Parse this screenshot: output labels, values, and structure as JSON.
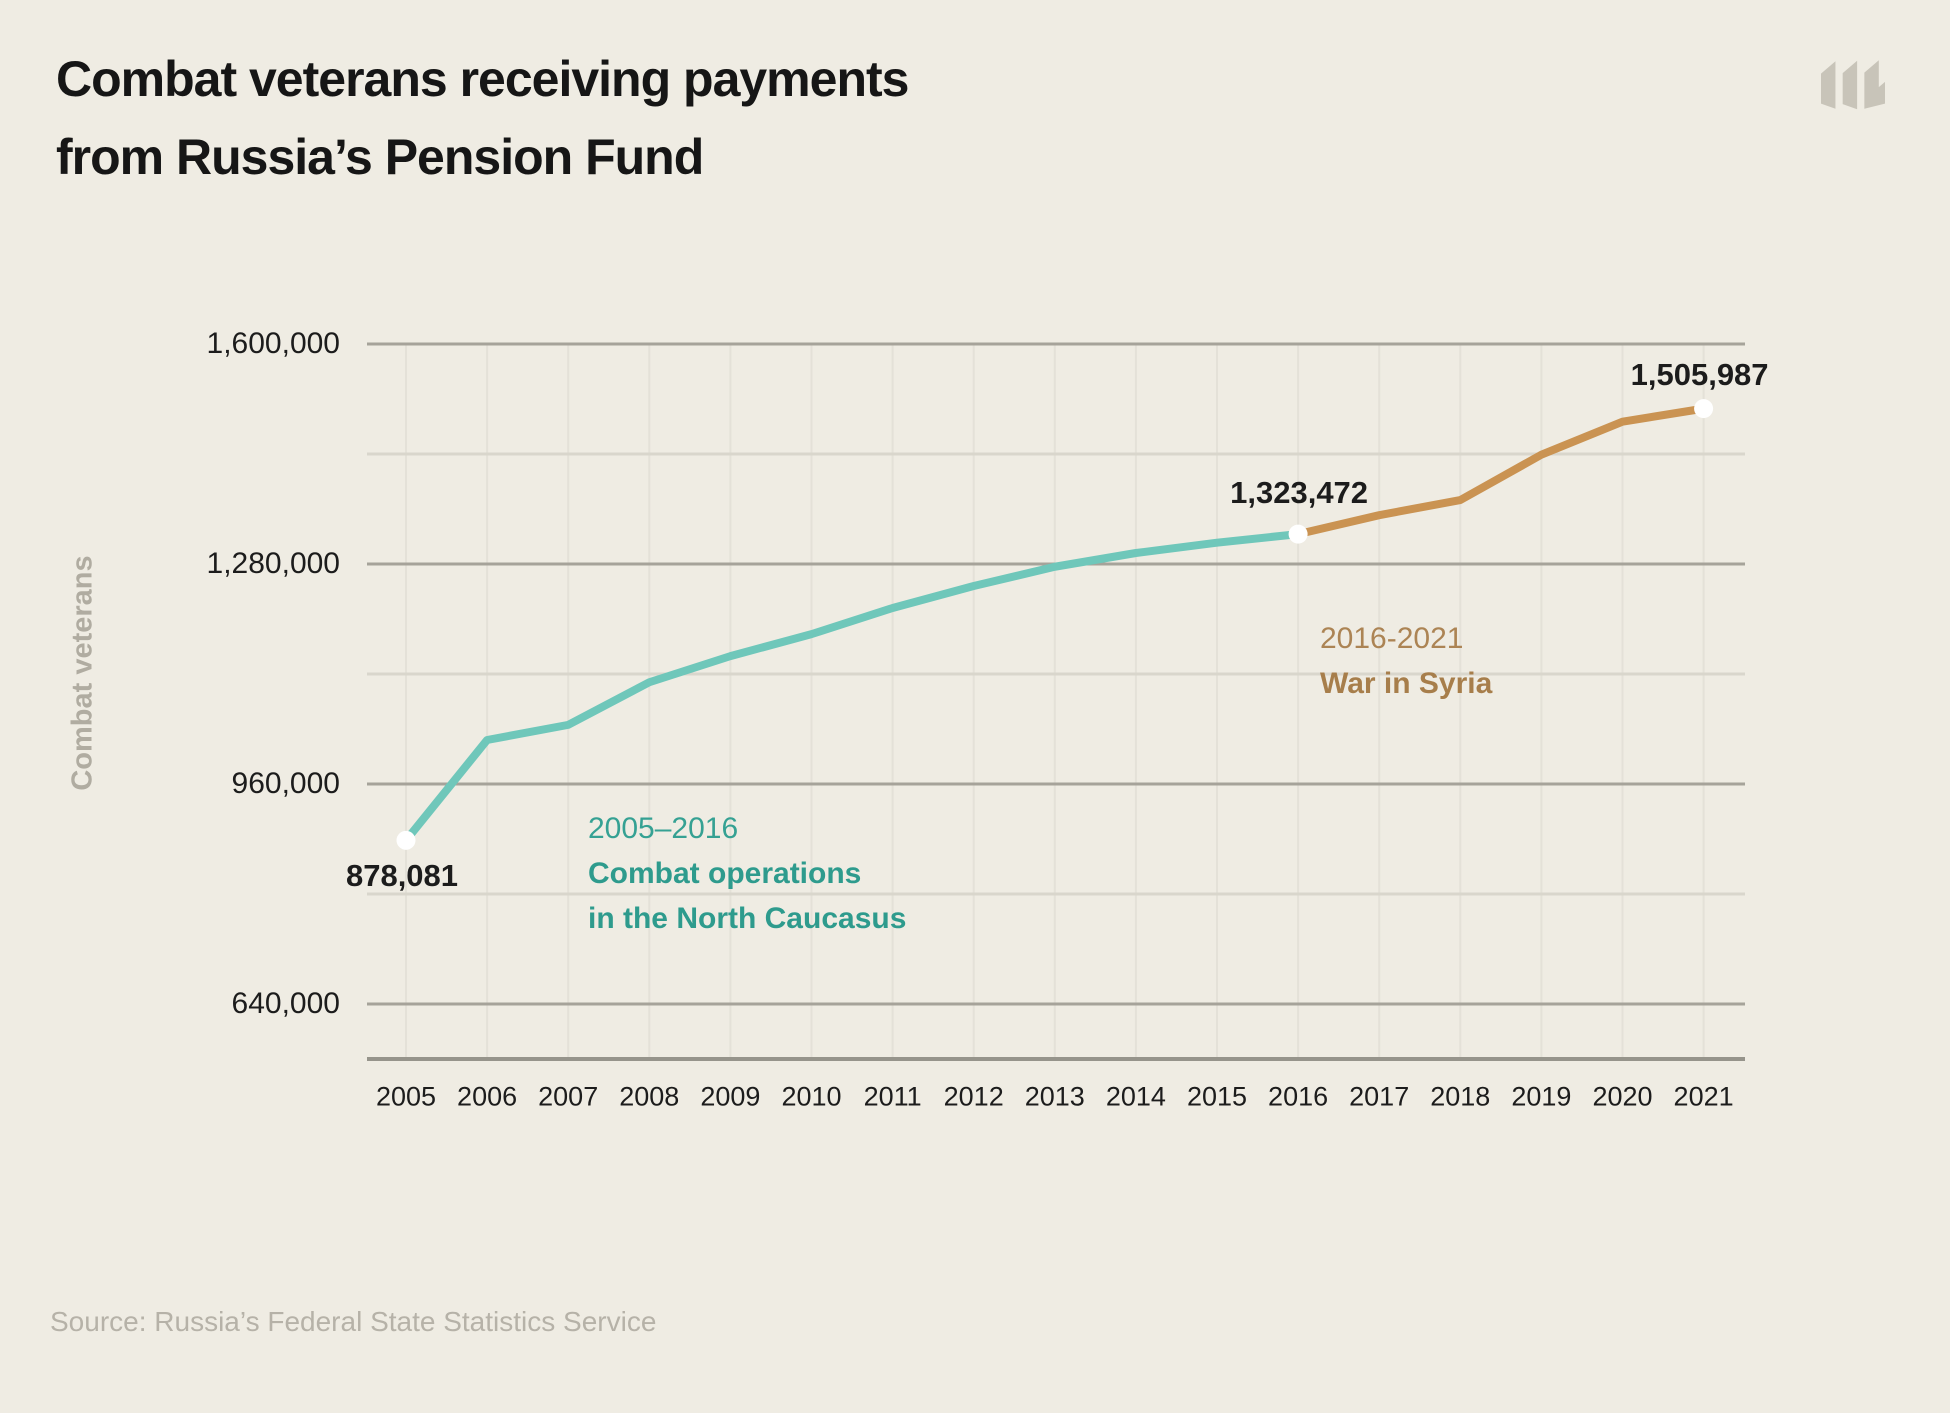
{
  "header": {
    "title_line1": "Combat veterans receiving payments",
    "title_line2": "from Russia’s Pension Fund",
    "logo": "meduza-m-logo"
  },
  "chart_data": {
    "type": "line",
    "title": "Combat veterans receiving payments from Russia’s Pension Fund",
    "xlabel": "",
    "ylabel": "Combat veterans",
    "x": [
      2005,
      2006,
      2007,
      2008,
      2009,
      2010,
      2011,
      2012,
      2013,
      2014,
      2015,
      2016,
      2017,
      2018,
      2019,
      2020,
      2021
    ],
    "series": [
      {
        "name": "Combat operations in the North Caucasus",
        "period": "2005–2016",
        "color": "#6FC7BA",
        "x": [
          2005,
          2006,
          2007,
          2008,
          2009,
          2010,
          2011,
          2012,
          2013,
          2014,
          2015,
          2016
        ],
        "values": [
          878081,
          1024000,
          1046000,
          1108000,
          1146000,
          1178000,
          1216000,
          1248000,
          1276000,
          1296000,
          1311000,
          1323472
        ]
      },
      {
        "name": "War in Syria",
        "period": "2016-2021",
        "color": "#CA9352",
        "x": [
          2016,
          2017,
          2018,
          2019,
          2020,
          2021
        ],
        "values": [
          1323472,
          1351000,
          1373000,
          1439000,
          1487000,
          1505987
        ]
      }
    ],
    "ylim": [
      560000,
      1600000
    ],
    "y_ticks": [
      1600000,
      1280000,
      960000,
      640000
    ],
    "y_tick_labels": [
      "1,600,000",
      "1,280,000",
      "960,000",
      "640,000"
    ],
    "y_minor_gridlines": [
      1440000,
      1120000,
      800000
    ],
    "grid": true,
    "legend_position": "annotations-inline",
    "point_labels": [
      {
        "x": 2005,
        "value": 878081,
        "label": "878,081"
      },
      {
        "x": 2016,
        "value": 1323472,
        "label": "1,323,472"
      },
      {
        "x": 2021,
        "value": 1505987,
        "label": "1,505,987"
      }
    ],
    "annotations": [
      {
        "period": "2005–2016",
        "line1": "Combat operations",
        "line2": "in the North Caucasus",
        "color": "#2E9B8D"
      },
      {
        "period": "2016-2021",
        "line1": "War in Syria",
        "line2": "",
        "color": "#A77E4B"
      }
    ]
  },
  "footer": {
    "source": "Source: Russia’s Federal State Statistics Service"
  },
  "colors": {
    "background": "#EFECE3",
    "title_text": "#161616",
    "axis_text": "#1C1C1C",
    "muted_gray": "#B0ACA1",
    "logo_gray": "#C8C4B9",
    "teal_line": "#6FC7BA",
    "orange_line": "#CA9352",
    "teal_text": "#2E9B8D",
    "brown_text": "#A77E4B",
    "major_gridline": "#A6A39A",
    "minor_gridline": "#D9D6CC",
    "vertical_gridline": "#E4E1D8",
    "axis_line": "#96948B",
    "dot_fill": "#FFFFFF"
  }
}
